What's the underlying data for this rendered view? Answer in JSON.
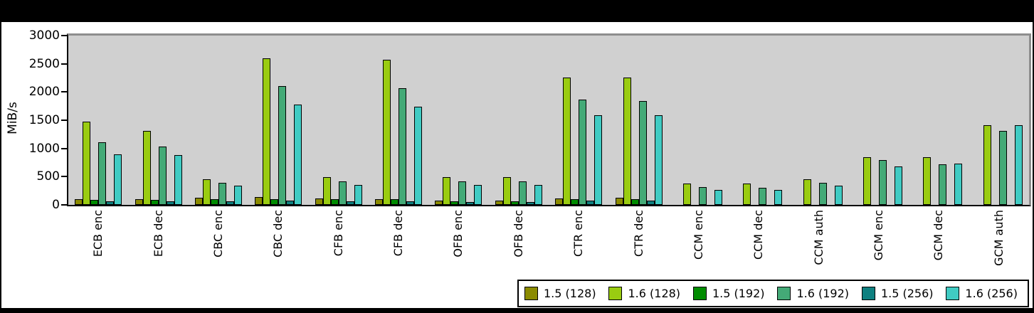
{
  "chart_data": {
    "type": "bar",
    "title": "",
    "xlabel": "",
    "ylabel": "MiB/s",
    "ylim": [
      0,
      3000
    ],
    "yticks": [
      0,
      500,
      1000,
      1500,
      2000,
      2500,
      3000
    ],
    "grid": false,
    "legend_position": "bottom-right",
    "plot_bg": "#d0d0d0",
    "plot_bevel": "#8e8e8e",
    "categories": [
      "ECB enc",
      "ECB dec",
      "CBC enc",
      "CBC dec",
      "CFB enc",
      "CFB dec",
      "OFB enc",
      "OFB dec",
      "CTR enc",
      "CTR dec",
      "CCM enc",
      "CCM dec",
      "CCM auth",
      "GCM enc",
      "GCM dec",
      "GCM auth"
    ],
    "series": [
      {
        "name": "1.5 (128)",
        "color": "#8b8b00",
        "values": [
          95,
          100,
          125,
          135,
          110,
          105,
          70,
          72,
          110,
          120,
          0,
          0,
          0,
          0,
          0,
          0
        ]
      },
      {
        "name": "1.6 (128)",
        "color": "#9acc11",
        "values": [
          1475,
          1305,
          455,
          2600,
          490,
          2575,
          490,
          495,
          2250,
          2250,
          375,
          375,
          450,
          845,
          850,
          1410
        ]
      },
      {
        "name": "1.5 (192)",
        "color": "#008c00",
        "values": [
          90,
          90,
          95,
          100,
          100,
          95,
          60,
          62,
          95,
          100,
          0,
          0,
          0,
          0,
          0,
          0
        ]
      },
      {
        "name": "1.6 (192)",
        "color": "#44aa77",
        "values": [
          1115,
          1035,
          385,
          2110,
          410,
          2070,
          415,
          420,
          1870,
          1845,
          310,
          305,
          390,
          790,
          720,
          1305
        ]
      },
      {
        "name": "1.5 (256)",
        "color": "#0e8080",
        "values": [
          60,
          65,
          65,
          75,
          65,
          65,
          45,
          50,
          70,
          80,
          0,
          0,
          0,
          0,
          0,
          0
        ]
      },
      {
        "name": "1.6 (256)",
        "color": "#40cbc3",
        "values": [
          895,
          880,
          335,
          1775,
          355,
          1745,
          350,
          355,
          1590,
          1590,
          265,
          270,
          340,
          685,
          735,
          1410
        ]
      }
    ]
  }
}
